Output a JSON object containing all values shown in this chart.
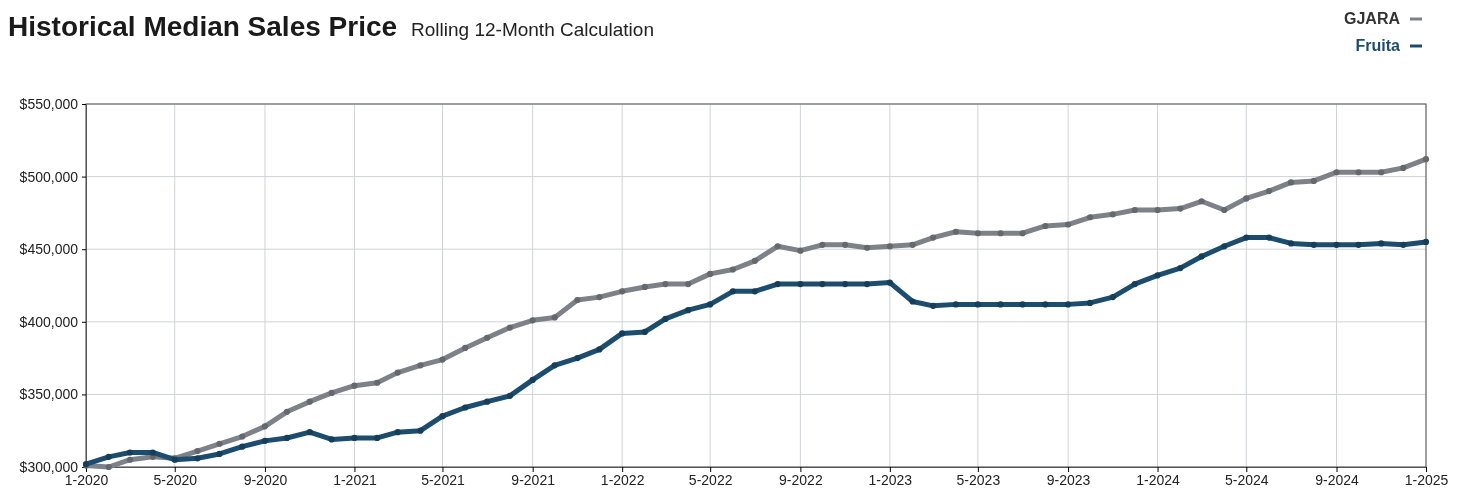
{
  "chart_data": {
    "type": "line",
    "title": "Historical Median Sales Price",
    "subtitle": "Rolling 12-Month Calculation",
    "x": [
      "2020-01",
      "2020-02",
      "2020-03",
      "2020-04",
      "2020-05",
      "2020-06",
      "2020-07",
      "2020-08",
      "2020-09",
      "2020-10",
      "2020-11",
      "2020-12",
      "2021-01",
      "2021-02",
      "2021-03",
      "2021-04",
      "2021-05",
      "2021-06",
      "2021-07",
      "2021-08",
      "2021-09",
      "2021-10",
      "2021-11",
      "2021-12",
      "2022-01",
      "2022-02",
      "2022-03",
      "2022-04",
      "2022-05",
      "2022-06",
      "2022-07",
      "2022-08",
      "2022-09",
      "2022-10",
      "2022-11",
      "2022-12",
      "2023-01",
      "2023-02",
      "2023-03",
      "2023-04",
      "2023-05",
      "2023-06",
      "2023-07",
      "2023-08",
      "2023-09",
      "2023-10",
      "2023-11",
      "2023-12",
      "2024-01",
      "2024-02",
      "2024-03",
      "2024-04",
      "2024-05",
      "2024-06",
      "2024-07",
      "2024-08",
      "2024-09",
      "2024-10",
      "2024-11",
      "2024-12",
      "2025-01"
    ],
    "series": [
      {
        "name": "GJARA",
        "color": "#7d8288",
        "values": [
          301000,
          300000,
          305000,
          307000,
          306000,
          311000,
          316000,
          321000,
          328000,
          338000,
          345000,
          351000,
          356000,
          358000,
          365000,
          370000,
          374000,
          382000,
          389000,
          396000,
          401000,
          403000,
          415000,
          417000,
          421000,
          424000,
          426000,
          426000,
          433000,
          436000,
          442000,
          452000,
          449000,
          453000,
          453000,
          451000,
          452000,
          453000,
          458000,
          462000,
          461000,
          461000,
          461000,
          466000,
          467000,
          472000,
          474000,
          477000,
          477000,
          478000,
          483000,
          477000,
          485000,
          490000,
          496000,
          497000,
          503000,
          503000,
          503000,
          506000,
          512000
        ]
      },
      {
        "name": "Fruita",
        "color": "#1d4d6e",
        "values": [
          302000,
          307000,
          310000,
          310000,
          305000,
          306000,
          309000,
          314000,
          318000,
          320000,
          324000,
          319000,
          320000,
          320000,
          324000,
          325000,
          335000,
          341000,
          345000,
          349000,
          360000,
          370000,
          375000,
          381000,
          392000,
          393000,
          402000,
          408000,
          412000,
          421000,
          421000,
          426000,
          426000,
          426000,
          426000,
          426000,
          427000,
          414000,
          411000,
          412000,
          412000,
          412000,
          412000,
          412000,
          412000,
          413000,
          417000,
          426000,
          432000,
          437000,
          445000,
          452000,
          458000,
          458000,
          454000,
          453000,
          453000,
          453000,
          454000,
          453000,
          455000
        ]
      }
    ],
    "xlim": [
      "2020-01",
      "2025-01"
    ],
    "xticks": [
      {
        "value": "2020-01",
        "label": "1-2020"
      },
      {
        "value": "2020-05",
        "label": "5-2020"
      },
      {
        "value": "2020-09",
        "label": "9-2020"
      },
      {
        "value": "2021-01",
        "label": "1-2021"
      },
      {
        "value": "2021-05",
        "label": "5-2021"
      },
      {
        "value": "2021-09",
        "label": "9-2021"
      },
      {
        "value": "2022-01",
        "label": "1-2022"
      },
      {
        "value": "2022-05",
        "label": "5-2022"
      },
      {
        "value": "2022-09",
        "label": "9-2022"
      },
      {
        "value": "2023-01",
        "label": "1-2023"
      },
      {
        "value": "2023-05",
        "label": "5-2023"
      },
      {
        "value": "2023-09",
        "label": "9-2023"
      },
      {
        "value": "2024-01",
        "label": "1-2024"
      },
      {
        "value": "2024-05",
        "label": "5-2024"
      },
      {
        "value": "2024-09",
        "label": "9-2024"
      },
      {
        "value": "2025-01",
        "label": "1-2025"
      }
    ],
    "ylim": [
      300000,
      550000
    ],
    "yticks": [
      {
        "value": 300000,
        "label": "$300,000"
      },
      {
        "value": 350000,
        "label": "$350,000"
      },
      {
        "value": 400000,
        "label": "$400,000"
      },
      {
        "value": 450000,
        "label": "$450,000"
      },
      {
        "value": 500000,
        "label": "$500,000"
      },
      {
        "value": 550000,
        "label": "$550,000"
      }
    ],
    "grid": true,
    "legend": "top right",
    "marker": "circle",
    "line_style": "solid"
  }
}
